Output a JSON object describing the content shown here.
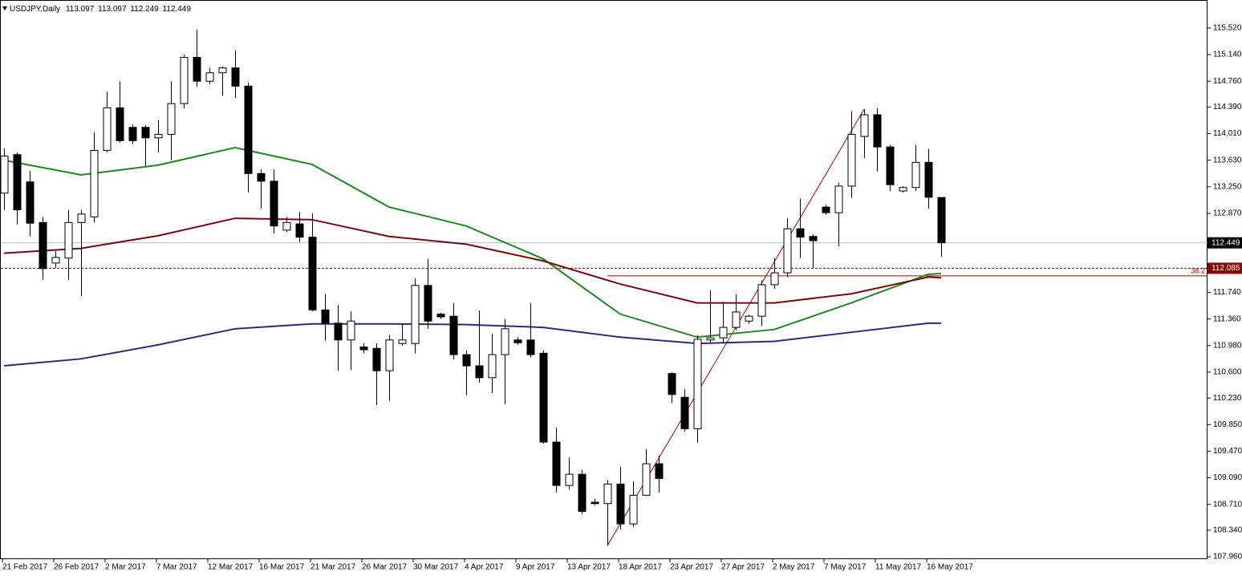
{
  "chart_data": {
    "type": "candlestick",
    "symbol": "USDJPY,Daily",
    "categories": [
      "21 Feb 2017",
      null,
      null,
      null,
      "26 Feb 2017",
      null,
      null,
      null,
      "2 Mar 2017",
      null,
      null,
      null,
      "7 Mar 2017",
      null,
      null,
      null,
      "12 Mar 2017",
      null,
      null,
      null,
      "16 Mar 2017",
      null,
      null,
      null,
      "21 Mar 2017",
      null,
      null,
      null,
      "26 Mar 2017",
      null,
      null,
      null,
      "30 Mar 2017",
      null,
      null,
      null,
      "4 Apr 2017",
      null,
      null,
      null,
      "9 Apr 2017",
      null,
      null,
      null,
      "13 Apr 2017",
      null,
      null,
      null,
      "18 Apr 2017",
      null,
      null,
      null,
      "23 Apr 2017",
      null,
      null,
      null,
      "27 Apr 2017",
      null,
      null,
      null,
      "2 May 2017",
      null,
      null,
      null,
      "7 May 2017",
      null,
      null,
      null,
      "11 May 2017",
      null,
      null,
      null,
      "16 May 2017",
      null
    ],
    "open": [
      113.16,
      113.71,
      113.32,
      112.74,
      112.16,
      112.23,
      112.74,
      112.82,
      113.77,
      114.38,
      114.1,
      114.1,
      113.95,
      114.0,
      114.44,
      115.1,
      114.76,
      114.88,
      114.95,
      114.69,
      113.44,
      113.33,
      112.63,
      112.72,
      112.53,
      111.49,
      111.3,
      111.06,
      110.96,
      110.94,
      110.62,
      111.01,
      111.01,
      111.84,
      111.43,
      111.4,
      110.85,
      110.69,
      110.52,
      110.85,
      111.06,
      111.06,
      110.87,
      109.6,
      108.98,
      109.14,
      108.74,
      108.72,
      109.0,
      108.43,
      108.84,
      109.29,
      110.58,
      110.24,
      109.79,
      111.06,
      111.09,
      111.24,
      111.33,
      111.4,
      111.85,
      112.02,
      112.65,
      112.54,
      112.96,
      112.88,
      113.26,
      113.97,
      114.28,
      113.82,
      113.19,
      113.24,
      113.6,
      113.097
    ],
    "high": [
      113.8,
      113.74,
      113.48,
      112.82,
      112.33,
      112.92,
      112.92,
      114.03,
      114.61,
      114.76,
      114.14,
      114.13,
      114.2,
      114.76,
      115.14,
      115.5,
      114.95,
      114.97,
      115.2,
      114.74,
      113.5,
      113.5,
      112.82,
      112.89,
      112.87,
      111.72,
      111.56,
      111.47,
      111.01,
      111.01,
      111.13,
      111.29,
      111.94,
      112.22,
      111.45,
      111.59,
      110.91,
      111.48,
      111.15,
      111.36,
      111.1,
      111.59,
      110.91,
      109.81,
      109.38,
      109.2,
      108.79,
      109.06,
      109.25,
      109.04,
      109.5,
      109.41,
      110.6,
      110.36,
      111.13,
      111.77,
      111.61,
      111.71,
      111.42,
      111.91,
      112.23,
      112.8,
      113.08,
      112.57,
      112.99,
      113.31,
      114.33,
      114.36,
      114.37,
      113.85,
      113.26,
      113.85,
      113.79,
      113.097
    ],
    "low": [
      112.92,
      112.71,
      112.54,
      111.92,
      112.09,
      111.92,
      111.69,
      112.74,
      113.74,
      113.88,
      113.86,
      113.55,
      113.74,
      113.63,
      114.37,
      114.68,
      114.72,
      114.55,
      114.52,
      113.17,
      112.94,
      112.58,
      112.6,
      112.46,
      111.47,
      111.05,
      110.62,
      110.63,
      110.87,
      110.13,
      110.19,
      110.98,
      110.87,
      111.22,
      111.36,
      110.78,
      110.27,
      110.45,
      110.3,
      110.14,
      110.99,
      110.81,
      109.58,
      108.88,
      108.92,
      108.57,
      108.7,
      108.12,
      108.35,
      108.39,
      108.83,
      108.88,
      110.16,
      109.75,
      109.59,
      111.02,
      111.01,
      111.2,
      111.29,
      111.26,
      111.79,
      111.96,
      112.23,
      112.09,
      112.85,
      112.4,
      113.09,
      113.66,
      113.47,
      113.19,
      113.17,
      113.19,
      112.94,
      112.249
    ],
    "close": [
      113.69,
      112.92,
      112.73,
      112.08,
      112.24,
      112.74,
      112.86,
      113.77,
      114.38,
      113.91,
      113.91,
      113.95,
      114.0,
      114.44,
      115.1,
      114.76,
      114.88,
      114.95,
      114.69,
      113.44,
      113.33,
      112.69,
      112.74,
      112.53,
      111.49,
      111.3,
      111.06,
      111.33,
      110.92,
      110.62,
      111.06,
      111.06,
      111.84,
      111.33,
      111.39,
      110.85,
      110.69,
      110.52,
      110.85,
      111.22,
      111.02,
      110.85,
      109.6,
      108.98,
      109.14,
      108.61,
      108.72,
      109.0,
      108.43,
      108.84,
      109.29,
      109.08,
      110.28,
      109.79,
      111.07,
      111.09,
      111.24,
      111.46,
      111.4,
      111.85,
      112.02,
      112.65,
      112.53,
      112.48,
      112.88,
      113.26,
      114.0,
      114.28,
      113.82,
      113.28,
      113.24,
      113.6,
      113.1,
      112.449
    ],
    "up_color": "#ffffff",
    "down_color": "#000000",
    "series": [
      {
        "color": "#1e8a1e",
        "x": [
          0,
          6,
          12,
          18,
          24,
          30,
          36,
          42,
          48,
          54,
          60,
          66,
          72,
          73
        ],
        "values": [
          113.63,
          113.42,
          113.56,
          113.81,
          113.57,
          112.96,
          112.69,
          112.22,
          111.43,
          111.1,
          111.21,
          111.59,
          112.0,
          112.01
        ]
      },
      {
        "color": "#7a0a0a",
        "x": [
          0,
          6,
          12,
          18,
          24,
          30,
          36,
          42,
          48,
          54,
          60,
          66,
          72,
          73
        ],
        "values": [
          112.3,
          112.37,
          112.55,
          112.8,
          112.78,
          112.54,
          112.43,
          112.19,
          111.86,
          111.59,
          111.59,
          111.72,
          111.96,
          111.95
        ]
      },
      {
        "color": "#2b2b80",
        "x": [
          0,
          6,
          12,
          18,
          24,
          30,
          36,
          42,
          48,
          54,
          60,
          66,
          72,
          73
        ],
        "values": [
          110.69,
          110.79,
          110.99,
          111.22,
          111.29,
          111.29,
          111.28,
          111.24,
          111.1,
          111.01,
          111.04,
          111.17,
          111.3,
          111.3
        ]
      }
    ],
    "hline": {
      "value": {
        "value": 112.085,
        "label": "112.085"
      },
      "color": "#8b0000"
    },
    "price_line_color": "#c0c0c0",
    "fibo": {
      "x": [
        47,
        67
      ],
      "values": [
        108.12,
        114.36
      ],
      "level": 38.2,
      "color": "#b00000"
    },
    "ylim": [
      107.926,
      115.921
    ],
    "yticks": [
      {
        "value": 115.52,
        "label": "115.520"
      },
      {
        "value": 115.14,
        "label": "115.140"
      },
      {
        "value": 114.76,
        "label": "114.760"
      },
      {
        "value": 114.39,
        "label": "114.390"
      },
      {
        "value": 114.01,
        "label": "114.010"
      },
      {
        "value": 113.63,
        "label": "113.630"
      },
      {
        "value": 113.25,
        "label": "113.250"
      },
      {
        "value": 112.87,
        "label": "112.870"
      },
      {
        "value": 111.74,
        "label": "111.740"
      },
      {
        "value": 111.36,
        "label": "111.360"
      },
      {
        "value": 110.98,
        "label": "110.980"
      },
      {
        "value": 110.6,
        "label": "110.600"
      },
      {
        "value": 110.23,
        "label": "110.230"
      },
      {
        "value": 109.85,
        "label": "109.850"
      },
      {
        "value": 109.47,
        "label": "109.470"
      },
      {
        "value": 109.09,
        "label": "109.090"
      },
      {
        "value": 108.71,
        "label": "108.710"
      },
      {
        "value": 108.34,
        "label": "108.340"
      },
      {
        "value": 107.96,
        "label": "107.960"
      }
    ]
  }
}
